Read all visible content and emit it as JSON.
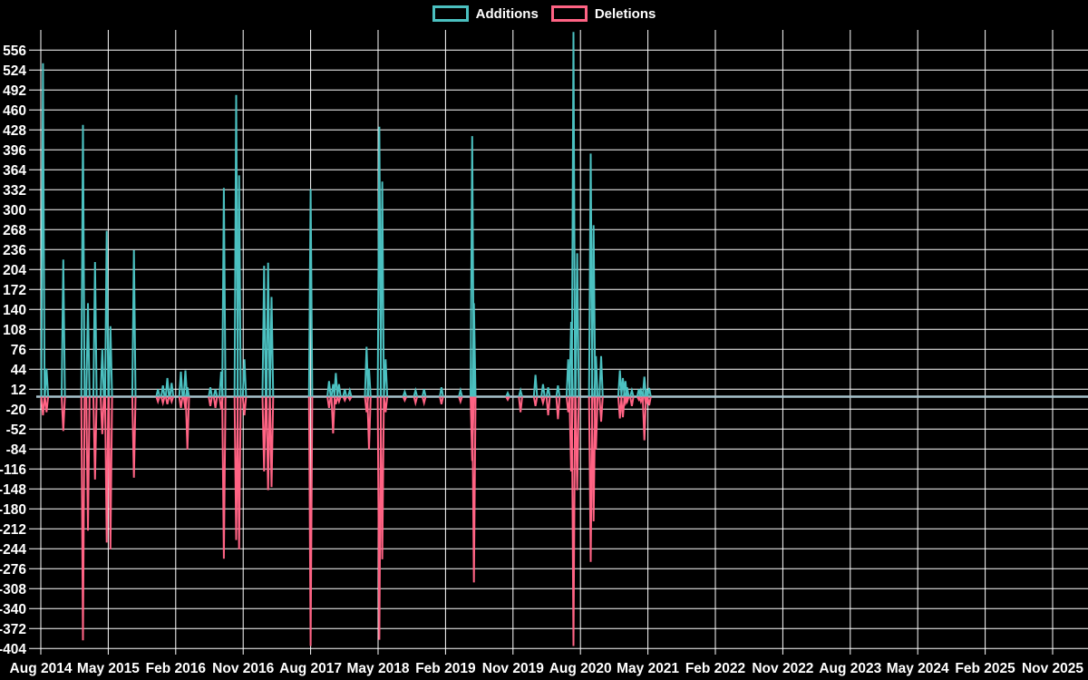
{
  "chart": {
    "legend": [
      {
        "label": "Additions",
        "color": "#4bc0c0"
      },
      {
        "label": "Deletions",
        "color": "#ff6384"
      }
    ]
  },
  "chart_data": {
    "type": "line",
    "title": "",
    "xlabel": "",
    "ylabel": "",
    "legend_position": "top",
    "grid": true,
    "background_color": "#000000",
    "grid_color": "#ffffff",
    "axis_text_color": "#ffffff",
    "zero_line_color": "#a7c2cc",
    "ylim": [
      -404,
      556
    ],
    "y_ticks": [
      556,
      524,
      492,
      460,
      428,
      396,
      364,
      332,
      300,
      268,
      236,
      204,
      172,
      140,
      108,
      76,
      44,
      12,
      -20,
      -52,
      -84,
      -116,
      -148,
      -180,
      -212,
      -244,
      -276,
      -308,
      -340,
      -372,
      -404
    ],
    "x_ticks": [
      "Aug 2014",
      "May 2015",
      "Feb 2016",
      "Nov 2016",
      "Aug 2017",
      "May 2018",
      "Feb 2019",
      "Nov 2019",
      "Aug 2020",
      "May 2021",
      "Feb 2022",
      "Nov 2022",
      "Aug 2023",
      "May 2024",
      "Feb 2025",
      "Nov 2025"
    ],
    "x": [
      "2014-08-10",
      "2014-08-24",
      "2014-11-01",
      "2015-01-20",
      "2015-02-10",
      "2015-03-08",
      "2015-04-07",
      "2015-04-25",
      "2015-05-10",
      "2015-08-14",
      "2015-11-20",
      "2015-12-10",
      "2015-12-28",
      "2016-01-15",
      "2016-02-22",
      "2016-03-10",
      "2016-03-18",
      "2016-06-20",
      "2016-07-10",
      "2016-08-03",
      "2016-08-14",
      "2016-10-03",
      "2016-10-15",
      "2016-11-06",
      "2017-01-25",
      "2017-02-11",
      "2017-02-25",
      "2017-08-01",
      "2017-10-15",
      "2017-11-01",
      "2017-11-12",
      "2017-11-25",
      "2017-12-18",
      "2018-01-08",
      "2018-03-15",
      "2018-03-25",
      "2018-05-06",
      "2018-05-18",
      "2018-06-01",
      "2018-08-18",
      "2018-10-01",
      "2018-11-05",
      "2019-01-15",
      "2019-04-01",
      "2019-05-18",
      "2019-05-25",
      "2019-10-10",
      "2019-12-01",
      "2020-02-01",
      "2020-03-01",
      "2020-03-22",
      "2020-05-01",
      "2020-06-12",
      "2020-06-24",
      "2020-07-03",
      "2020-07-18",
      "2020-09-12",
      "2020-09-24",
      "2020-10-03",
      "2020-10-24",
      "2021-01-09",
      "2021-01-21",
      "2021-02-01",
      "2021-02-08",
      "2021-02-27",
      "2021-03-25",
      "2021-04-03",
      "2021-04-17",
      "2021-04-24",
      "2021-05-06"
    ],
    "series": [
      {
        "name": "Additions",
        "color": "#4bc0c0",
        "values": [
          535,
          45,
          220,
          436,
          150,
          216,
          77,
          266,
          113,
          235,
          12,
          18,
          30,
          22,
          40,
          42,
          15,
          15,
          12,
          40,
          335,
          484,
          355,
          60,
          210,
          215,
          160,
          333,
          25,
          20,
          38,
          20,
          12,
          10,
          80,
          45,
          433,
          345,
          60,
          8,
          10,
          12,
          15,
          10,
          418,
          150,
          6,
          10,
          35,
          20,
          15,
          18,
          60,
          120,
          585,
          230,
          390,
          275,
          65,
          65,
          42,
          30,
          25,
          15,
          10,
          12,
          10,
          32,
          12,
          14
        ]
      },
      {
        "name": "Deletions",
        "color": "#ff6384",
        "values": [
          -30,
          -25,
          -55,
          -391,
          -215,
          -133,
          -60,
          -234,
          -245,
          -130,
          -8,
          -10,
          -12,
          -8,
          -18,
          -20,
          -85,
          -15,
          -18,
          -20,
          -260,
          -230,
          -245,
          -30,
          -120,
          -150,
          -145,
          -400,
          -18,
          -59,
          -12,
          -8,
          -6,
          -5,
          -25,
          -85,
          -390,
          -261,
          -25,
          -6,
          -10,
          -10,
          -12,
          -8,
          -103,
          -298,
          -5,
          -25,
          -15,
          -10,
          -30,
          -36,
          -25,
          -120,
          -400,
          -150,
          -265,
          -200,
          -85,
          -40,
          -35,
          -33,
          -10,
          -8,
          -15,
          -5,
          -8,
          -70,
          -12,
          -14
        ]
      }
    ]
  }
}
